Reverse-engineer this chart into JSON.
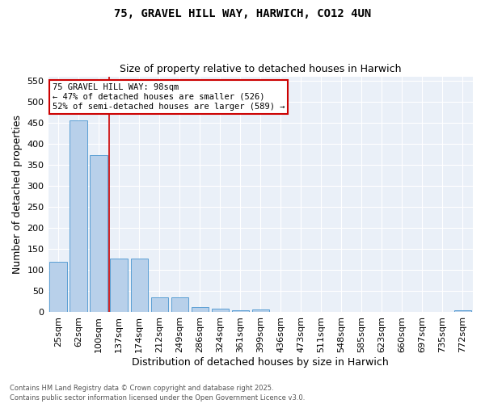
{
  "title1": "75, GRAVEL HILL WAY, HARWICH, CO12 4UN",
  "title2": "Size of property relative to detached houses in Harwich",
  "xlabel": "Distribution of detached houses by size in Harwich",
  "ylabel": "Number of detached properties",
  "categories": [
    "25sqm",
    "62sqm",
    "100sqm",
    "137sqm",
    "174sqm",
    "212sqm",
    "249sqm",
    "286sqm",
    "324sqm",
    "361sqm",
    "399sqm",
    "436sqm",
    "473sqm",
    "511sqm",
    "548sqm",
    "585sqm",
    "623sqm",
    "660sqm",
    "697sqm",
    "735sqm",
    "772sqm"
  ],
  "values": [
    120,
    455,
    373,
    128,
    128,
    35,
    35,
    13,
    9,
    5,
    6,
    1,
    0,
    0,
    0,
    1,
    0,
    0,
    0,
    0,
    4
  ],
  "bar_color": "#b8d0ea",
  "bar_edge_color": "#5a9fd4",
  "vline_color": "#cc0000",
  "annotation_text": "75 GRAVEL HILL WAY: 98sqm\n← 47% of detached houses are smaller (526)\n52% of semi-detached houses are larger (589) →",
  "annotation_box_color": "#cc0000",
  "footer1": "Contains HM Land Registry data © Crown copyright and database right 2025.",
  "footer2": "Contains public sector information licensed under the Open Government Licence v3.0.",
  "background_color": "#eaf0f8",
  "ylim": [
    0,
    560
  ],
  "yticks": [
    0,
    50,
    100,
    150,
    200,
    250,
    300,
    350,
    400,
    450,
    500,
    550
  ],
  "title_fontsize": 10,
  "subtitle_fontsize": 9,
  "tick_fontsize": 8,
  "label_fontsize": 9,
  "footer_fontsize": 6
}
